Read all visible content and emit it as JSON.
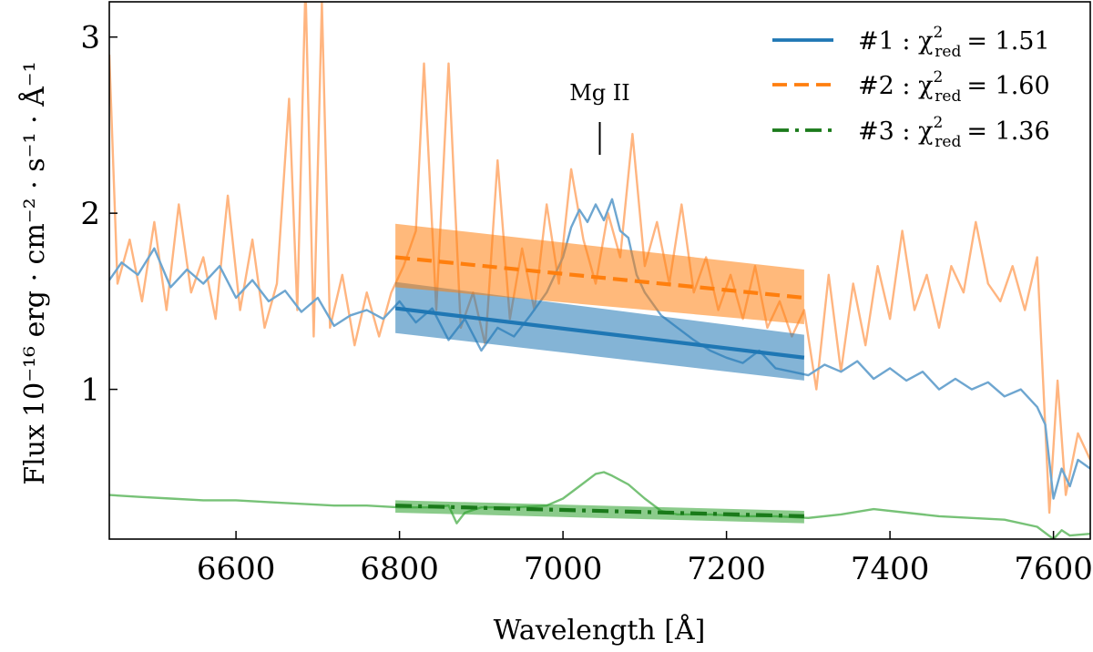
{
  "chart_data": {
    "type": "line",
    "xlabel": "Wavelength [Å]",
    "ylabel": "Flux [10^-16 erg · cm^-2 · s^-1 · Å^-1]",
    "ylabel_prefix": "Flux",
    "ylabel_units": "10⁻¹⁶ erg · cm⁻² · s⁻¹ · Å⁻¹",
    "xlim": [
      6445,
      7645
    ],
    "ylim": [
      0.15,
      3.2
    ],
    "xticks": [
      6600,
      6800,
      7000,
      7200,
      7400,
      7600
    ],
    "yticks": [
      1,
      2,
      3
    ],
    "grid": false,
    "legend_placement": "top-right",
    "annotation": {
      "text": "Mg II",
      "x": 7045
    },
    "colors": {
      "blue": "#1f77b4",
      "orange": "#ff7f0e",
      "green": "#2ca02c",
      "darkgreen": "#1a7a1a",
      "blue_spec": "#6ea6d0",
      "orange_spec": "#ffb580",
      "green_spec": "#77c277"
    },
    "series": [
      {
        "name": "#1 : χ²_red = 1.51",
        "legend_label": "#1 :  χ",
        "legend_sub": "red",
        "legend_value": "= 1.51",
        "style": "solid",
        "x": [
          6795,
          7295
        ],
        "y": [
          1.46,
          1.18
        ],
        "band_upper": [
          1.61,
          1.31
        ],
        "band_lower": [
          1.32,
          1.05
        ]
      },
      {
        "name": "#2 : χ²_red = 1.60",
        "legend_label": "#2 :  χ",
        "legend_sub": "red",
        "legend_value": "= 1.60",
        "style": "dashed",
        "x": [
          6795,
          7295
        ],
        "y": [
          1.75,
          1.52
        ],
        "band_upper": [
          1.94,
          1.68
        ],
        "band_lower": [
          1.58,
          1.37
        ]
      },
      {
        "name": "#3 : χ²_red = 1.36",
        "legend_label": "#3 :  χ",
        "legend_sub": "red",
        "legend_value": "= 1.36",
        "style": "dashdot",
        "x": [
          6795,
          7295
        ],
        "y": [
          0.34,
          0.28
        ],
        "band_upper": [
          0.37,
          0.31
        ],
        "band_lower": [
          0.3,
          0.24
        ]
      }
    ],
    "spectra": {
      "blue": {
        "x": [
          6445,
          6460,
          6480,
          6500,
          6520,
          6540,
          6560,
          6580,
          6600,
          6620,
          6640,
          6660,
          6680,
          6700,
          6720,
          6740,
          6760,
          6780,
          6800,
          6820,
          6840,
          6860,
          6880,
          6900,
          6920,
          6940,
          6960,
          6980,
          7000,
          7010,
          7020,
          7030,
          7040,
          7050,
          7060,
          7070,
          7080,
          7090,
          7100,
          7120,
          7140,
          7160,
          7180,
          7200,
          7220,
          7240,
          7260,
          7280,
          7300,
          7320,
          7340,
          7360,
          7380,
          7400,
          7420,
          7440,
          7460,
          7480,
          7500,
          7520,
          7540,
          7560,
          7580,
          7590,
          7600,
          7610,
          7620,
          7630,
          7645
        ],
        "y": [
          1.62,
          1.72,
          1.65,
          1.8,
          1.58,
          1.68,
          1.6,
          1.7,
          1.52,
          1.62,
          1.5,
          1.56,
          1.44,
          1.52,
          1.36,
          1.42,
          1.45,
          1.4,
          1.5,
          1.38,
          1.46,
          1.28,
          1.4,
          1.22,
          1.35,
          1.3,
          1.42,
          1.55,
          1.75,
          1.92,
          2.02,
          1.95,
          2.05,
          1.96,
          2.08,
          1.9,
          1.86,
          1.65,
          1.55,
          1.42,
          1.35,
          1.28,
          1.22,
          1.18,
          1.15,
          1.22,
          1.12,
          1.1,
          1.08,
          1.14,
          1.1,
          1.16,
          1.06,
          1.12,
          1.05,
          1.1,
          1.0,
          1.06,
          1.0,
          1.04,
          0.96,
          1.0,
          0.9,
          0.8,
          0.38,
          0.55,
          0.45,
          0.6,
          0.55
        ]
      },
      "orange": {
        "x": [
          6445,
          6455,
          6470,
          6485,
          6500,
          6515,
          6530,
          6545,
          6560,
          6575,
          6590,
          6605,
          6620,
          6635,
          6650,
          6665,
          6675,
          6685,
          6695,
          6705,
          6715,
          6730,
          6745,
          6760,
          6775,
          6790,
          6805,
          6820,
          6830,
          6845,
          6860,
          6875,
          6890,
          6905,
          6920,
          6935,
          6950,
          6965,
          6980,
          6995,
          7010,
          7025,
          7040,
          7055,
          7070,
          7085,
          7100,
          7115,
          7130,
          7145,
          7160,
          7175,
          7190,
          7205,
          7220,
          7235,
          7250,
          7265,
          7280,
          7295,
          7310,
          7325,
          7340,
          7355,
          7370,
          7385,
          7400,
          7415,
          7430,
          7445,
          7460,
          7475,
          7490,
          7505,
          7520,
          7535,
          7550,
          7565,
          7580,
          7595,
          7605,
          7615,
          7630,
          7645
        ],
        "y": [
          2.9,
          1.6,
          1.85,
          1.5,
          1.95,
          1.45,
          2.05,
          1.55,
          1.75,
          1.4,
          2.1,
          1.45,
          1.85,
          1.35,
          1.6,
          2.65,
          1.45,
          3.3,
          1.3,
          3.2,
          1.35,
          1.65,
          1.25,
          1.55,
          1.3,
          1.55,
          1.7,
          1.9,
          2.85,
          1.45,
          2.85,
          1.35,
          1.55,
          1.25,
          2.3,
          1.4,
          1.8,
          1.45,
          2.05,
          1.6,
          2.25,
          1.85,
          1.6,
          2.0,
          1.75,
          2.45,
          1.7,
          1.95,
          1.6,
          2.05,
          1.55,
          1.75,
          1.45,
          1.65,
          1.4,
          1.7,
          1.35,
          1.5,
          1.3,
          1.45,
          1.0,
          1.65,
          1.1,
          1.6,
          1.25,
          1.7,
          1.4,
          1.9,
          1.45,
          1.65,
          1.35,
          1.7,
          1.55,
          1.95,
          1.6,
          1.5,
          1.7,
          1.45,
          1.75,
          0.3,
          1.05,
          0.4,
          0.75,
          0.6
        ]
      },
      "green": {
        "x": [
          6445,
          6480,
          6520,
          6560,
          6600,
          6640,
          6680,
          6720,
          6760,
          6800,
          6840,
          6860,
          6870,
          6880,
          6900,
          6940,
          6980,
          7000,
          7020,
          7040,
          7050,
          7060,
          7080,
          7100,
          7120,
          7140,
          7180,
          7220,
          7260,
          7300,
          7340,
          7380,
          7420,
          7460,
          7500,
          7540,
          7580,
          7600,
          7610,
          7620,
          7645
        ],
        "y": [
          0.4,
          0.39,
          0.38,
          0.37,
          0.37,
          0.36,
          0.35,
          0.34,
          0.34,
          0.33,
          0.33,
          0.34,
          0.24,
          0.3,
          0.33,
          0.33,
          0.34,
          0.38,
          0.45,
          0.52,
          0.53,
          0.51,
          0.46,
          0.38,
          0.31,
          0.29,
          0.29,
          0.28,
          0.28,
          0.27,
          0.29,
          0.32,
          0.3,
          0.28,
          0.27,
          0.26,
          0.22,
          0.15,
          0.2,
          0.17,
          0.18
        ]
      }
    }
  }
}
